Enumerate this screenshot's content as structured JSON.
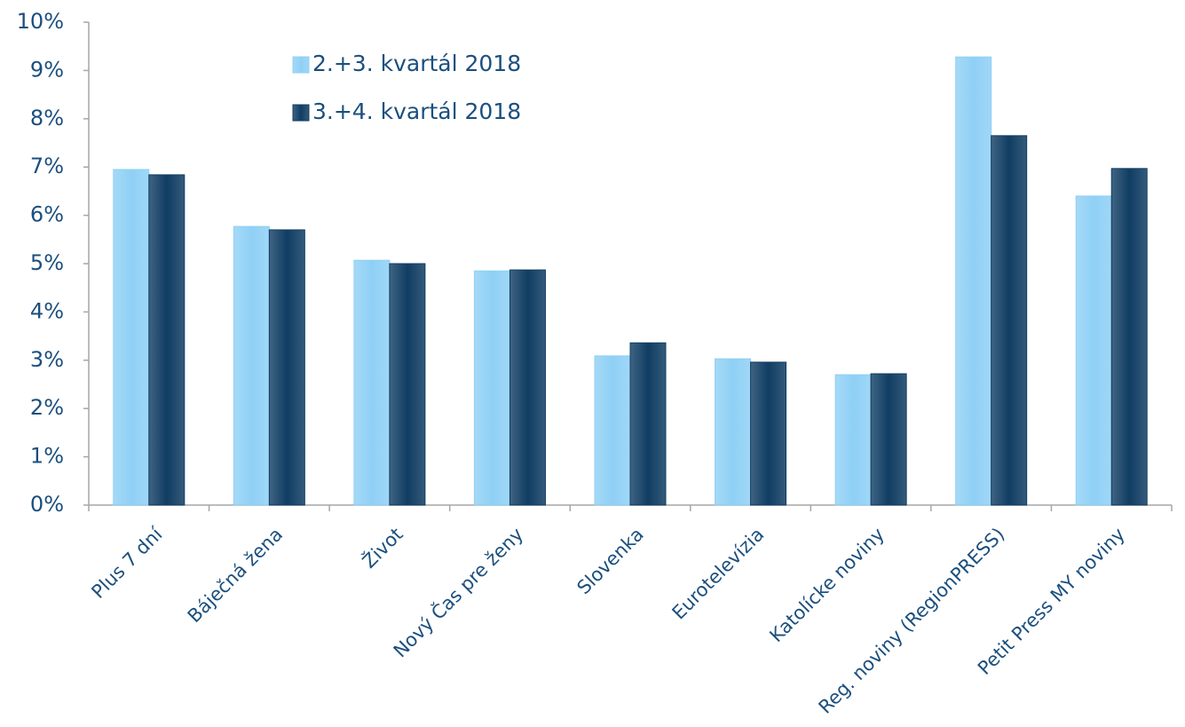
{
  "chart_data": {
    "type": "bar",
    "categories": [
      "Plus 7 dní",
      "Báječná žena",
      "Život",
      "Nový Čas pre ženy",
      "Slovenka",
      "Eurotelevízia",
      "Katolícke noviny",
      "Reg. noviny (RegionPRESS)",
      "Petit Press MY noviny"
    ],
    "series": [
      {
        "name": "2.+3. kvartál 2018",
        "color": "#8fd0f5",
        "values": [
          6.95,
          5.77,
          5.07,
          4.85,
          3.09,
          3.03,
          2.7,
          9.28,
          6.4
        ]
      },
      {
        "name": "3.+4. kvartál 2018",
        "color": "#103d63",
        "values": [
          6.84,
          5.7,
          5.0,
          4.87,
          3.36,
          2.96,
          2.72,
          7.65,
          6.97
        ]
      }
    ],
    "ylim": [
      0,
      10
    ],
    "yticks": [
      {
        "value": 0,
        "label": "0%"
      },
      {
        "value": 1,
        "label": "1%"
      },
      {
        "value": 2,
        "label": "2%"
      },
      {
        "value": 3,
        "label": "3%"
      },
      {
        "value": 4,
        "label": "4%"
      },
      {
        "value": 5,
        "label": "5%"
      },
      {
        "value": 6,
        "label": "6%"
      },
      {
        "value": 7,
        "label": "7%"
      },
      {
        "value": 8,
        "label": "8%"
      },
      {
        "value": 9,
        "label": "9%"
      },
      {
        "value": 10,
        "label": "10%"
      }
    ],
    "legend": "top-left"
  }
}
